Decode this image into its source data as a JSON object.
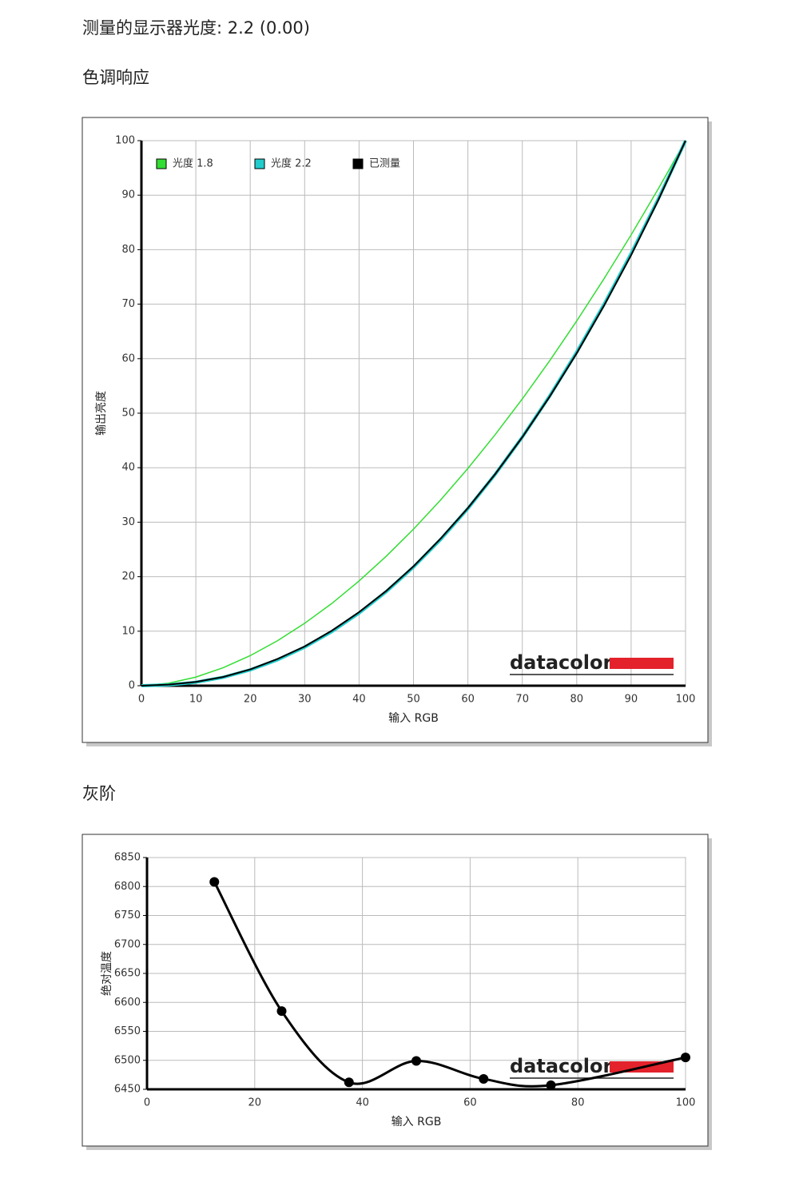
{
  "header": {
    "title": "测量的显示器光度: 2.2 (0.00)"
  },
  "sections": [
    "色调响应",
    "灰阶"
  ],
  "watermark": "datacolor",
  "chart_data": [
    {
      "type": "line",
      "xlabel": "输入 RGB",
      "ylabel": "输出亮度",
      "x": [
        0,
        5,
        10,
        15,
        20,
        25,
        30,
        35,
        40,
        45,
        50,
        55,
        60,
        65,
        70,
        75,
        80,
        85,
        90,
        95,
        100
      ],
      "series": [
        {
          "name": "光度 1.8",
          "color": "#33dd33",
          "width": 1.5,
          "values": [
            0,
            0.46,
            1.58,
            3.29,
            5.52,
            8.25,
            11.45,
            15.1,
            19.22,
            23.76,
            28.72,
            34.09,
            39.87,
            46.05,
            52.62,
            59.58,
            66.92,
            74.64,
            82.72,
            91.18,
            100
          ]
        },
        {
          "name": "光度 2.2",
          "color": "#22cccc",
          "width": 4,
          "values": [
            0,
            0.14,
            0.63,
            1.54,
            2.9,
            4.74,
            7.07,
            9.93,
            13.32,
            17.26,
            21.76,
            26.84,
            32.5,
            38.76,
            45.62,
            53.11,
            61.21,
            69.94,
            79.31,
            89.33,
            100
          ]
        },
        {
          "name": "已测量",
          "color": "#000000",
          "width": 2,
          "values": [
            0,
            0.2,
            0.7,
            1.6,
            3.0,
            4.9,
            7.2,
            10.1,
            13.5,
            17.4,
            21.9,
            27.0,
            32.6,
            38.8,
            45.6,
            53.0,
            61.0,
            69.7,
            79.0,
            89.1,
            100
          ]
        }
      ],
      "xlim": [
        0,
        100
      ],
      "xticks": [
        0,
        10,
        20,
        30,
        40,
        50,
        60,
        70,
        80,
        90,
        100
      ],
      "ylim": [
        0,
        100
      ],
      "yticks": [
        0,
        10,
        20,
        30,
        40,
        50,
        60,
        70,
        80,
        90,
        100
      ],
      "grid": true,
      "legend": "upper left",
      "smooth": false,
      "markers": false
    },
    {
      "type": "line",
      "xlabel": "输入 RGB",
      "ylabel": "绝对温度",
      "x": [
        12.5,
        25,
        37.5,
        50,
        62.5,
        75,
        100
      ],
      "series": [
        {
          "color": "#000000",
          "width": 3,
          "values": [
            6808,
            6585,
            6462,
            6499,
            6468,
            6457,
            6505
          ]
        }
      ],
      "xlim": [
        0,
        100
      ],
      "xticks": [
        0,
        20,
        40,
        60,
        80,
        100
      ],
      "ylim": [
        6450,
        6850
      ],
      "yticks": [
        6450,
        6500,
        6550,
        6600,
        6650,
        6700,
        6750,
        6800,
        6850
      ],
      "grid": true,
      "smooth": true,
      "markers": true
    }
  ]
}
